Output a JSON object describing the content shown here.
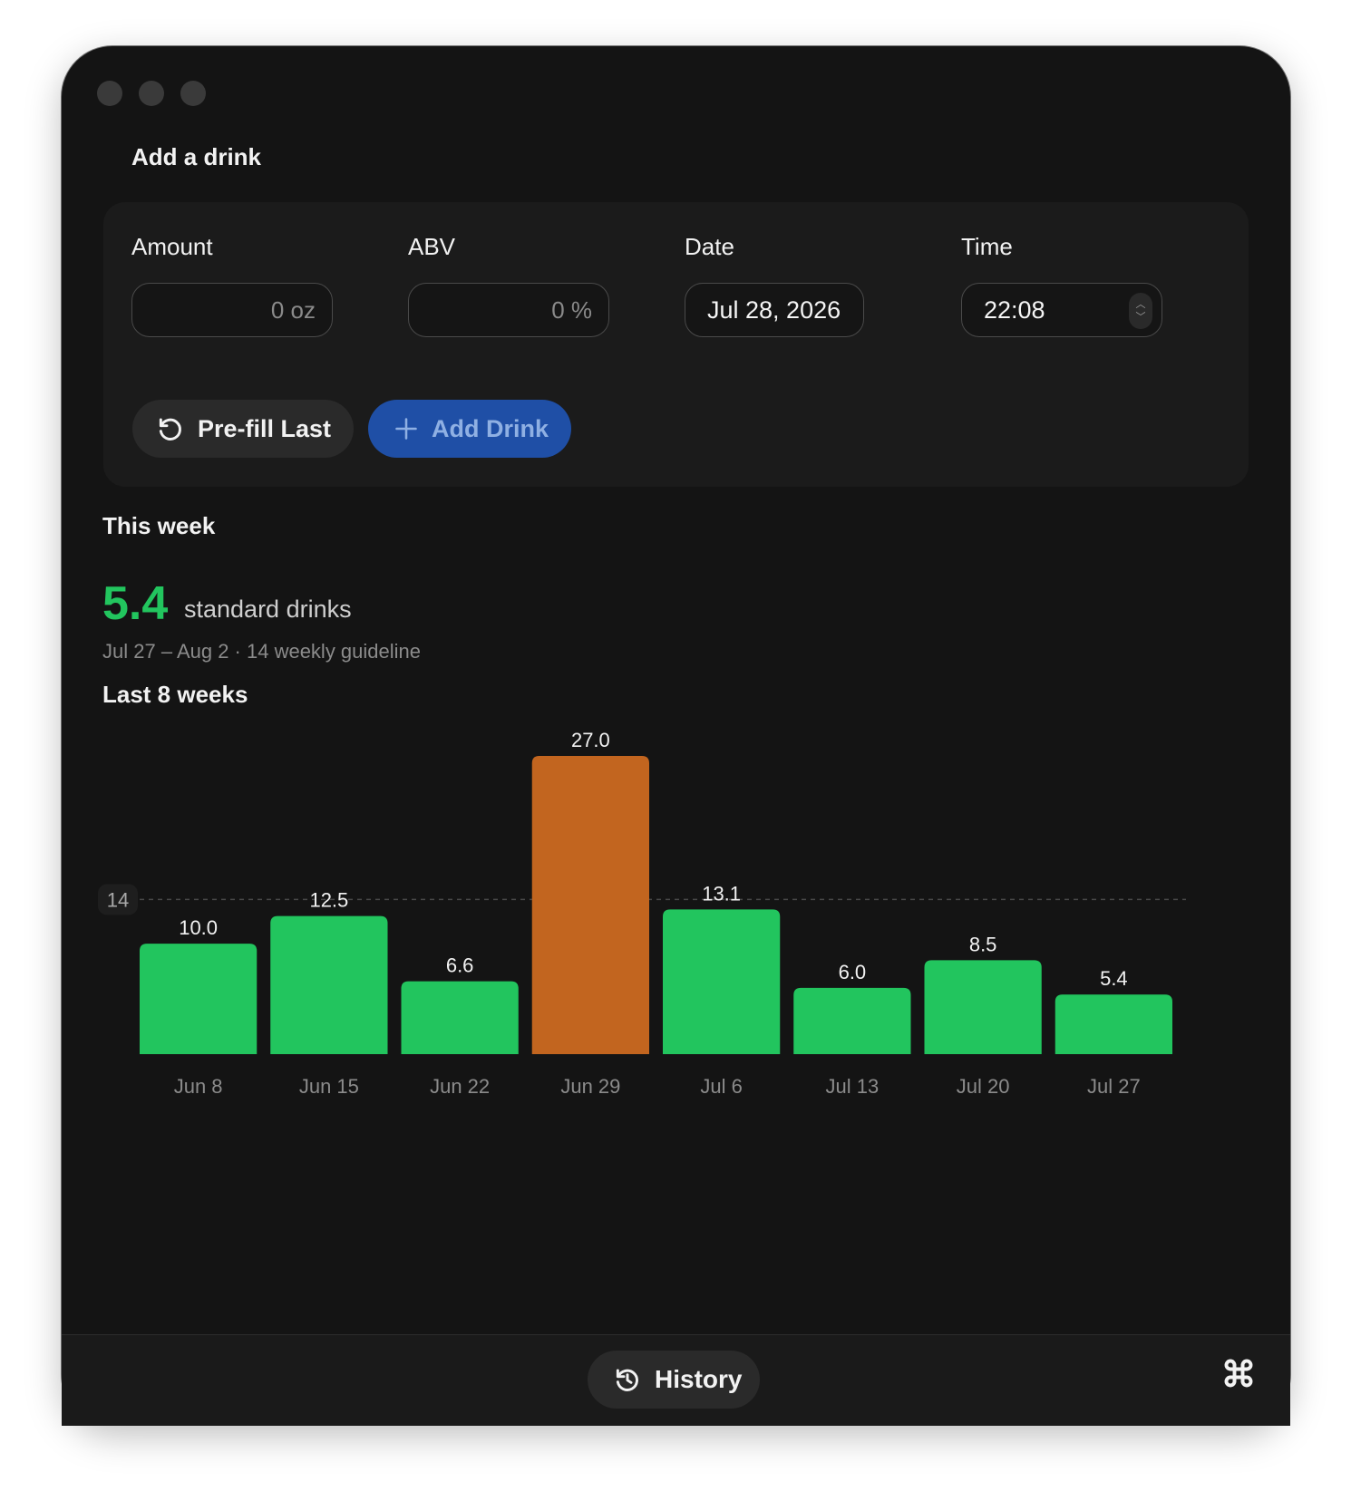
{
  "form": {
    "title": "Add a drink",
    "amount": {
      "label": "Amount",
      "placeholder": "0 oz"
    },
    "abv": {
      "label": "ABV",
      "placeholder": "0 %"
    },
    "date": {
      "label": "Date",
      "value": "Jul 28, 2026"
    },
    "time": {
      "label": "Time",
      "value": "22:08"
    },
    "prefill_label": "Pre-fill Last",
    "add_label": "Add Drink"
  },
  "summary": {
    "title": "This week",
    "value": "5.4",
    "unit": "standard drinks",
    "subline": "Jul 27 – Aug 2 · 14 weekly guideline"
  },
  "chart_title": "Last 8 weeks",
  "chart_data": {
    "type": "bar",
    "categories": [
      "Jun 8",
      "Jun 15",
      "Jun 22",
      "Jun 29",
      "Jul 6",
      "Jul 13",
      "Jul 20",
      "Jul 27"
    ],
    "values": [
      10.0,
      12.5,
      6.6,
      27.0,
      13.1,
      6.0,
      8.5,
      5.4
    ],
    "guideline": 14,
    "guideline_label": "14",
    "ylim": [
      0,
      27
    ],
    "colors": {
      "under": "#22c55e",
      "over": "#c2651f"
    }
  },
  "footer": {
    "history_label": "History"
  },
  "icons": {
    "prefill": "counterclockwise-arrow-icon",
    "add": "plus-icon",
    "history": "clock-history-icon",
    "command": "command-key-icon"
  }
}
